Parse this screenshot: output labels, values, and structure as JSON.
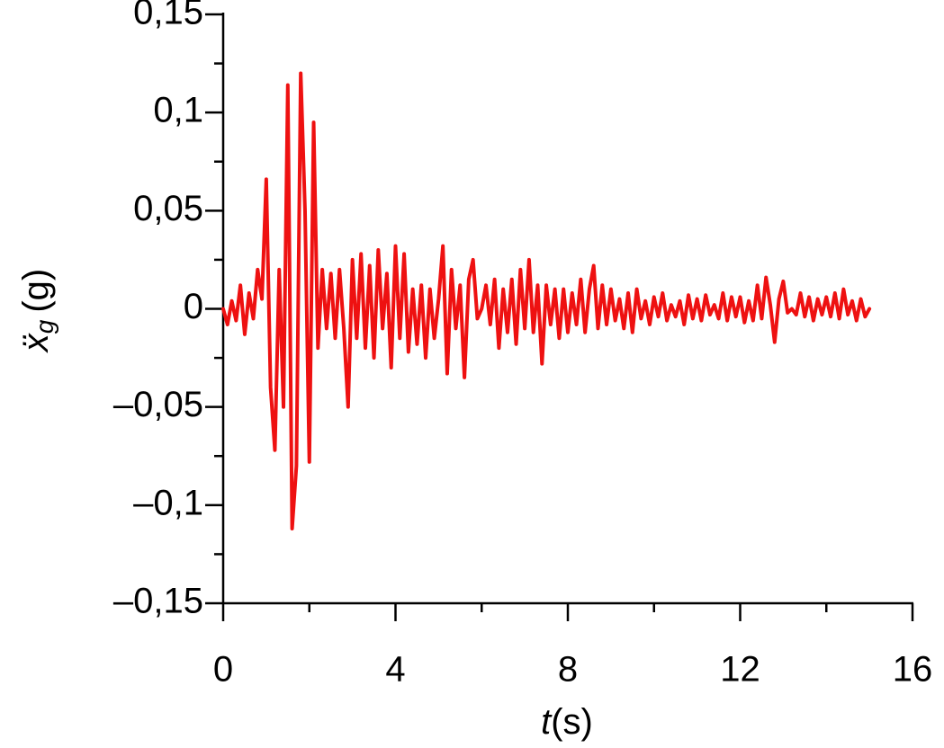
{
  "chart_data": {
    "type": "line",
    "x_label": {
      "symbol": "t",
      "unit": "(s)"
    },
    "y_label": {
      "symbol": "ẍ",
      "subscript": "g",
      "unit": "(g)"
    },
    "xlim": [
      0,
      16
    ],
    "xticks": [
      0,
      4,
      8,
      12,
      16
    ],
    "x_minor_ticks": [
      2,
      6,
      10,
      14
    ],
    "ylim": [
      -0.15,
      0.15
    ],
    "yticks": [
      {
        "value": -0.15,
        "label": "–0,15"
      },
      {
        "value": -0.1,
        "label": "–0,1"
      },
      {
        "value": -0.05,
        "label": "–0,05"
      },
      0,
      {
        "value": 0.05,
        "label": "0,05"
      },
      {
        "value": 0.1,
        "label": "0,1"
      },
      {
        "value": 0.15,
        "label": "0,15"
      }
    ],
    "y_minor_ticks": [
      -0.125,
      -0.075,
      -0.025,
      0.025,
      0.075,
      0.125
    ],
    "grid": false,
    "x": [
      0,
      0.1,
      0.2,
      0.3,
      0.4,
      0.5,
      0.6,
      0.7,
      0.8,
      0.9,
      1,
      1.1,
      1.2,
      1.3,
      1.4,
      1.5,
      1.6,
      1.7,
      1.8,
      1.9,
      2,
      2.1,
      2.2,
      2.3,
      2.4,
      2.5,
      2.6,
      2.7,
      2.8,
      2.9,
      3,
      3.1,
      3.2,
      3.3,
      3.4,
      3.5,
      3.6,
      3.7,
      3.8,
      3.9,
      4,
      4.1,
      4.2,
      4.3,
      4.4,
      4.5,
      4.6,
      4.7,
      4.8,
      4.9,
      5,
      5.1,
      5.2,
      5.3,
      5.4,
      5.5,
      5.6,
      5.7,
      5.8,
      5.9,
      6,
      6.1,
      6.2,
      6.3,
      6.4,
      6.5,
      6.6,
      6.7,
      6.8,
      6.9,
      7,
      7.1,
      7.2,
      7.3,
      7.4,
      7.5,
      7.6,
      7.7,
      7.8,
      7.9,
      8,
      8.1,
      8.2,
      8.3,
      8.4,
      8.5,
      8.6,
      8.7,
      8.8,
      8.9,
      9,
      9.1,
      9.2,
      9.3,
      9.4,
      9.5,
      9.6,
      9.7,
      9.8,
      9.9,
      10,
      10.1,
      10.2,
      10.3,
      10.4,
      10.5,
      10.6,
      10.7,
      10.8,
      10.9,
      11,
      11.1,
      11.2,
      11.3,
      11.4,
      11.5,
      11.6,
      11.7,
      11.8,
      11.9,
      12,
      12.1,
      12.2,
      12.3,
      12.4,
      12.5,
      12.6,
      12.7,
      12.8,
      12.9,
      13,
      13.1,
      13.2,
      13.3,
      13.4,
      13.5,
      13.6,
      13.7,
      13.8,
      13.9,
      14,
      14.1,
      14.2,
      14.3,
      14.4,
      14.5,
      14.6,
      14.7,
      14.8,
      14.9,
      15
    ],
    "series": [
      {
        "color": "#ee1111",
        "values": [
          0,
          -0.008,
          0.004,
          -0.006,
          0.012,
          -0.013,
          0.008,
          -0.005,
          0.02,
          0.005,
          0.066,
          -0.04,
          -0.072,
          0.02,
          -0.05,
          0.114,
          -0.112,
          -0.08,
          0.12,
          0.05,
          -0.078,
          0.095,
          -0.02,
          0.02,
          -0.01,
          0.018,
          -0.015,
          0.02,
          -0.01,
          -0.05,
          0.025,
          -0.015,
          0.028,
          -0.02,
          0.022,
          -0.025,
          0.03,
          -0.01,
          0.018,
          -0.03,
          0.032,
          -0.015,
          0.028,
          -0.022,
          0.01,
          -0.018,
          0.012,
          -0.025,
          0.01,
          -0.015,
          0.005,
          0.032,
          -0.033,
          0.02,
          -0.01,
          0.012,
          -0.035,
          0.015,
          0.025,
          -0.005,
          0,
          0.012,
          -0.008,
          0.015,
          -0.02,
          0.01,
          -0.012,
          0.015,
          -0.018,
          0.02,
          -0.01,
          0.025,
          -0.012,
          0.012,
          -0.028,
          0.012,
          -0.008,
          0.01,
          -0.015,
          0.01,
          -0.012,
          0.008,
          -0.008,
          0.015,
          -0.012,
          0.01,
          0.022,
          -0.01,
          0.012,
          -0.008,
          0.01,
          -0.006,
          0.005,
          -0.01,
          0.008,
          -0.012,
          0.01,
          -0.005,
          0.004,
          -0.008,
          0.006,
          -0.004,
          0.008,
          -0.006,
          0.002,
          -0.004,
          0.004,
          -0.008,
          0.007,
          -0.005,
          0.005,
          -0.006,
          0.007,
          -0.003,
          0.002,
          -0.005,
          0.008,
          -0.006,
          0.006,
          -0.004,
          0.006,
          -0.007,
          0.004,
          -0.006,
          0.012,
          -0.005,
          0.016,
          0.002,
          -0.017,
          0.005,
          0.014,
          -0.002,
          0,
          -0.003,
          0.008,
          -0.004,
          0.006,
          -0.006,
          0.005,
          -0.003,
          0.006,
          -0.004,
          0.008,
          -0.005,
          0.01,
          -0.003,
          0.004,
          -0.006,
          0.005,
          -0.004,
          0
        ]
      }
    ]
  }
}
